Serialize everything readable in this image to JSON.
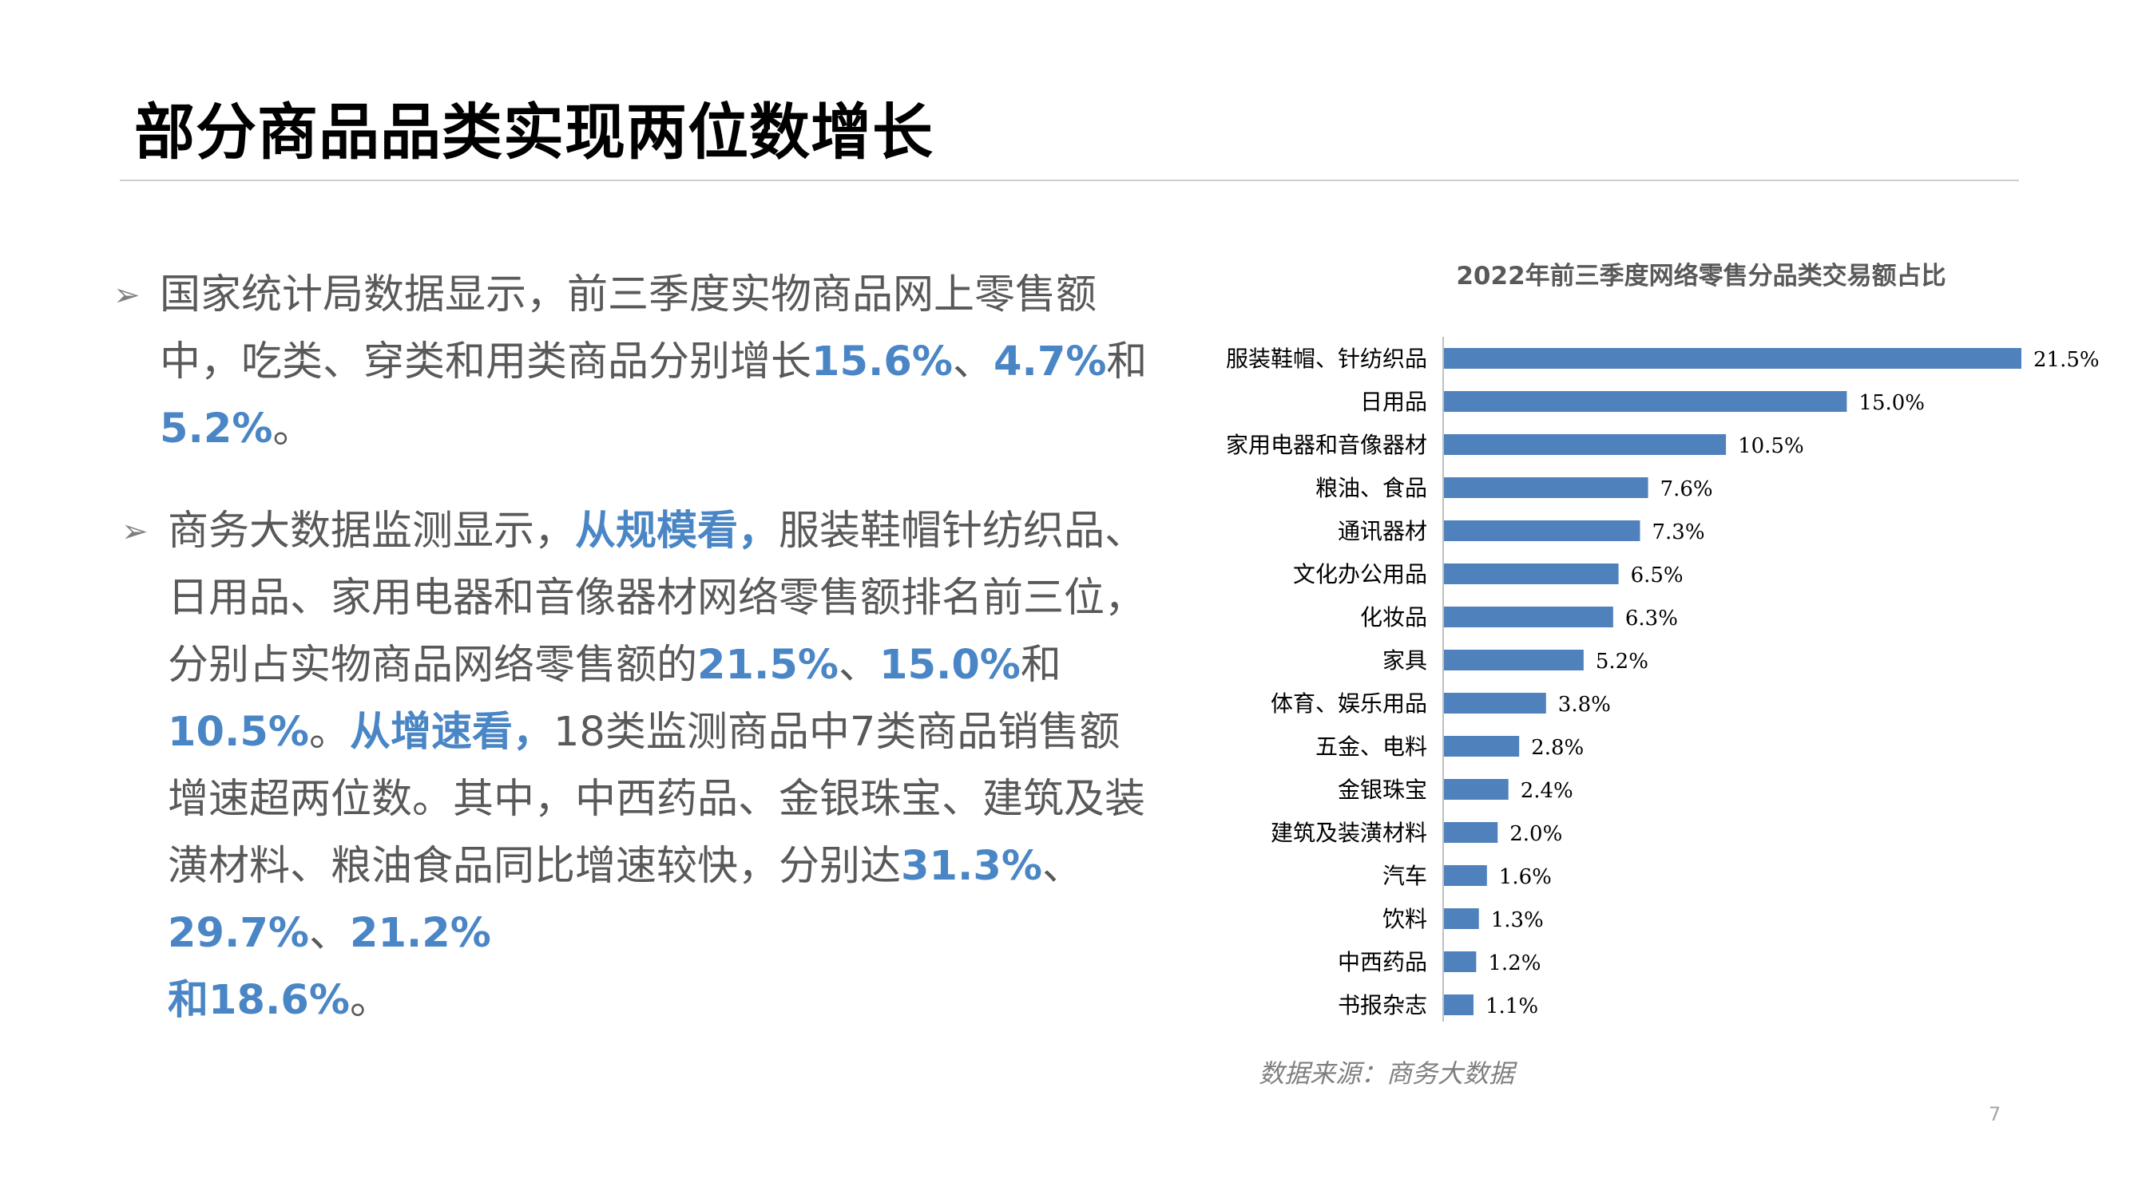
{
  "slide": {
    "title": "部分商品品类实现两位数增长",
    "page_number": "7"
  },
  "bullet_icon": "arrow-bullet-icon",
  "colors": {
    "accent": "#4a86c5",
    "bar": "#4f81bd",
    "text": "#595959"
  },
  "paragraph1": {
    "t1": "国家统计局数据显示，前三季度实物商品网上零售额中，吃类、穿类和用类商品分别增长",
    "h1": "15.6%",
    "t2": "、",
    "h2": "4.7%",
    "t3": "和",
    "h3": "5.2%",
    "t4": "。"
  },
  "paragraph2": {
    "t1": "商务大数据监测显示，",
    "h1": "从规模看，",
    "t2": "服装鞋帽针纺织品、日用品、家用电器和音像器材网络零售额排名前三位，分别占实物商品网络零售额的",
    "h2": "21.5%",
    "t3": "、",
    "h3": "15.0%",
    "t4": "和",
    "h4": "10.5%",
    "t5": "。",
    "h5": "从增速看，",
    "t6": "18类监测商品中7类商品销售额增速超两位数。其中，中西药品、金银珠宝、建筑及装潢材料、粮油食品同比增速较快，分别达",
    "h6": "31.3%",
    "t7": "、",
    "h7": "29.7%",
    "t8": "、",
    "h8": "21.2%",
    "h9": "和18.6%",
    "t9": "。"
  },
  "chart_data": {
    "type": "bar",
    "orientation": "horizontal",
    "title": "2022年前三季度网络零售分品类交易额占比",
    "categories": [
      "服装鞋帽、针纺织品",
      "日用品",
      "家用电器和音像器材",
      "粮油、食品",
      "通讯器材",
      "文化办公用品",
      "化妆品",
      "家具",
      "体育、娱乐用品",
      "五金、电料",
      "金银珠宝",
      "建筑及装潢材料",
      "汽车",
      "饮料",
      "中西药品",
      "书报杂志"
    ],
    "values": [
      21.5,
      15.0,
      10.5,
      7.6,
      7.3,
      6.5,
      6.3,
      5.2,
      3.8,
      2.8,
      2.4,
      2.0,
      1.6,
      1.3,
      1.2,
      1.1
    ],
    "value_labels": [
      "21.5%",
      "15.0%",
      "10.5%",
      "7.6%",
      "7.3%",
      "6.5%",
      "6.3%",
      "5.2%",
      "3.8%",
      "2.8%",
      "2.4%",
      "2.0%",
      "1.6%",
      "1.3%",
      "1.2%",
      "1.1%"
    ],
    "xlim": [
      0,
      21.5
    ],
    "grid": false,
    "legend": "none"
  },
  "source_note": "数据来源：商务大数据"
}
